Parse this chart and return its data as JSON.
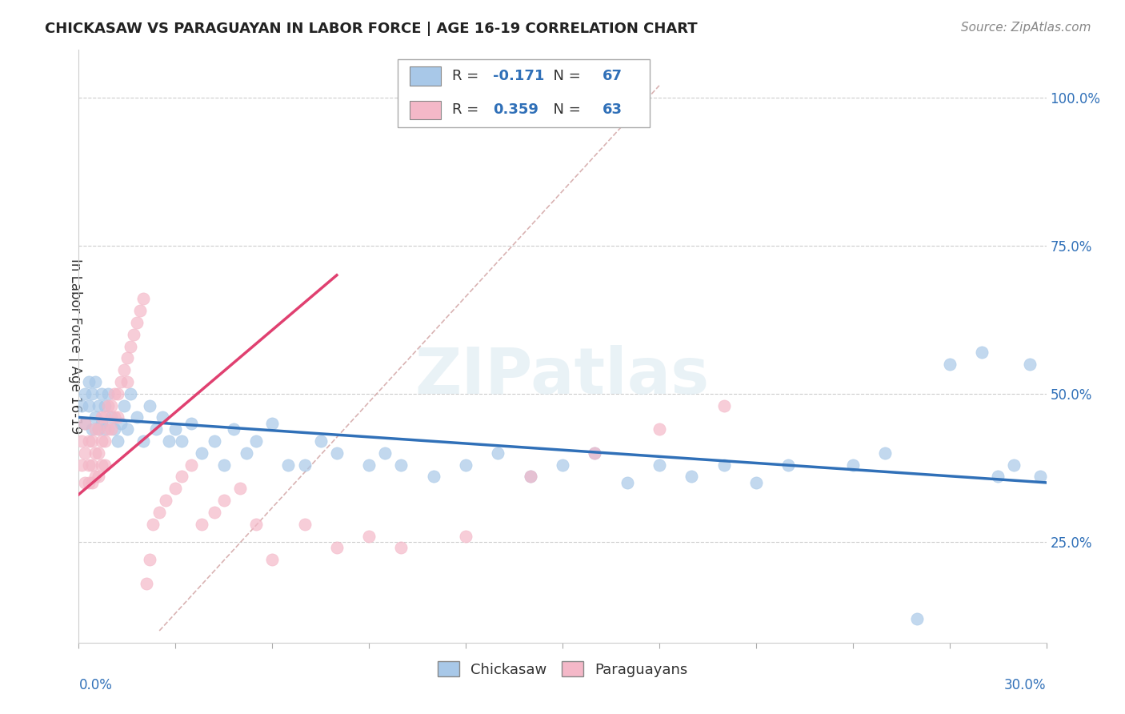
{
  "title": "CHICKASAW VS PARAGUAYAN IN LABOR FORCE | AGE 16-19 CORRELATION CHART",
  "source": "Source: ZipAtlas.com",
  "ylabel": "In Labor Force | Age 16-19",
  "legend_label1": "Chickasaw",
  "legend_label2": "Paraguayans",
  "r1": -0.171,
  "n1": 67,
  "r2": 0.359,
  "n2": 63,
  "blue_color": "#a8c8e8",
  "pink_color": "#f4b8c8",
  "blue_line_color": "#3070b8",
  "pink_line_color": "#e04070",
  "ref_line_color": "#d0a0a0",
  "xlim": [
    0.0,
    0.3
  ],
  "ylim": [
    0.08,
    1.08
  ],
  "ytick_vals": [
    0.25,
    0.5,
    0.75,
    1.0
  ],
  "ytick_labels": [
    "25.0%",
    "50.0%",
    "75.0%",
    "100.0%"
  ],
  "blue_line_x0": 0.0,
  "blue_line_y0": 0.46,
  "blue_line_x1": 0.3,
  "blue_line_y1": 0.35,
  "pink_line_x0": 0.0,
  "pink_line_x1": 0.08,
  "pink_line_y0": 0.33,
  "pink_line_y1": 0.7,
  "ref_line_x0": 0.025,
  "ref_line_y0": 0.1,
  "ref_line_x1": 0.18,
  "ref_line_y1": 1.02,
  "chickasaw_x": [
    0.001,
    0.002,
    0.002,
    0.003,
    0.003,
    0.004,
    0.004,
    0.005,
    0.005,
    0.006,
    0.006,
    0.007,
    0.007,
    0.008,
    0.008,
    0.009,
    0.01,
    0.011,
    0.012,
    0.013,
    0.014,
    0.015,
    0.016,
    0.018,
    0.02,
    0.022,
    0.024,
    0.026,
    0.028,
    0.03,
    0.032,
    0.035,
    0.038,
    0.042,
    0.045,
    0.048,
    0.052,
    0.055,
    0.06,
    0.065,
    0.07,
    0.075,
    0.08,
    0.09,
    0.095,
    0.1,
    0.11,
    0.12,
    0.13,
    0.14,
    0.15,
    0.16,
    0.17,
    0.18,
    0.19,
    0.2,
    0.21,
    0.22,
    0.24,
    0.25,
    0.26,
    0.27,
    0.28,
    0.285,
    0.29,
    0.295,
    0.298
  ],
  "chickasaw_y": [
    0.48,
    0.5,
    0.45,
    0.48,
    0.52,
    0.44,
    0.5,
    0.46,
    0.52,
    0.44,
    0.48,
    0.5,
    0.45,
    0.44,
    0.48,
    0.5,
    0.46,
    0.44,
    0.42,
    0.45,
    0.48,
    0.44,
    0.5,
    0.46,
    0.42,
    0.48,
    0.44,
    0.46,
    0.42,
    0.44,
    0.42,
    0.45,
    0.4,
    0.42,
    0.38,
    0.44,
    0.4,
    0.42,
    0.45,
    0.38,
    0.38,
    0.42,
    0.4,
    0.38,
    0.4,
    0.38,
    0.36,
    0.38,
    0.4,
    0.36,
    0.38,
    0.4,
    0.35,
    0.38,
    0.36,
    0.38,
    0.35,
    0.38,
    0.38,
    0.4,
    0.12,
    0.55,
    0.57,
    0.36,
    0.38,
    0.55,
    0.36
  ],
  "paraguayan_x": [
    0.001,
    0.001,
    0.002,
    0.002,
    0.002,
    0.003,
    0.003,
    0.003,
    0.004,
    0.004,
    0.004,
    0.005,
    0.005,
    0.005,
    0.006,
    0.006,
    0.006,
    0.007,
    0.007,
    0.007,
    0.008,
    0.008,
    0.008,
    0.009,
    0.009,
    0.01,
    0.01,
    0.011,
    0.011,
    0.012,
    0.012,
    0.013,
    0.014,
    0.015,
    0.015,
    0.016,
    0.017,
    0.018,
    0.019,
    0.02,
    0.021,
    0.022,
    0.023,
    0.025,
    0.027,
    0.03,
    0.032,
    0.035,
    0.038,
    0.042,
    0.045,
    0.05,
    0.055,
    0.06,
    0.07,
    0.08,
    0.09,
    0.1,
    0.12,
    0.14,
    0.16,
    0.18,
    0.2
  ],
  "paraguayan_y": [
    0.42,
    0.38,
    0.45,
    0.4,
    0.35,
    0.42,
    0.38,
    0.35,
    0.42,
    0.38,
    0.35,
    0.44,
    0.4,
    0.36,
    0.44,
    0.4,
    0.36,
    0.46,
    0.42,
    0.38,
    0.46,
    0.42,
    0.38,
    0.48,
    0.44,
    0.48,
    0.44,
    0.5,
    0.46,
    0.5,
    0.46,
    0.52,
    0.54,
    0.56,
    0.52,
    0.58,
    0.6,
    0.62,
    0.64,
    0.66,
    0.18,
    0.22,
    0.28,
    0.3,
    0.32,
    0.34,
    0.36,
    0.38,
    0.28,
    0.3,
    0.32,
    0.34,
    0.28,
    0.22,
    0.28,
    0.24,
    0.26,
    0.24,
    0.26,
    0.36,
    0.4,
    0.44,
    0.48
  ],
  "title_fontsize": 13,
  "source_fontsize": 11,
  "tick_label_fontsize": 12,
  "ylabel_fontsize": 12
}
